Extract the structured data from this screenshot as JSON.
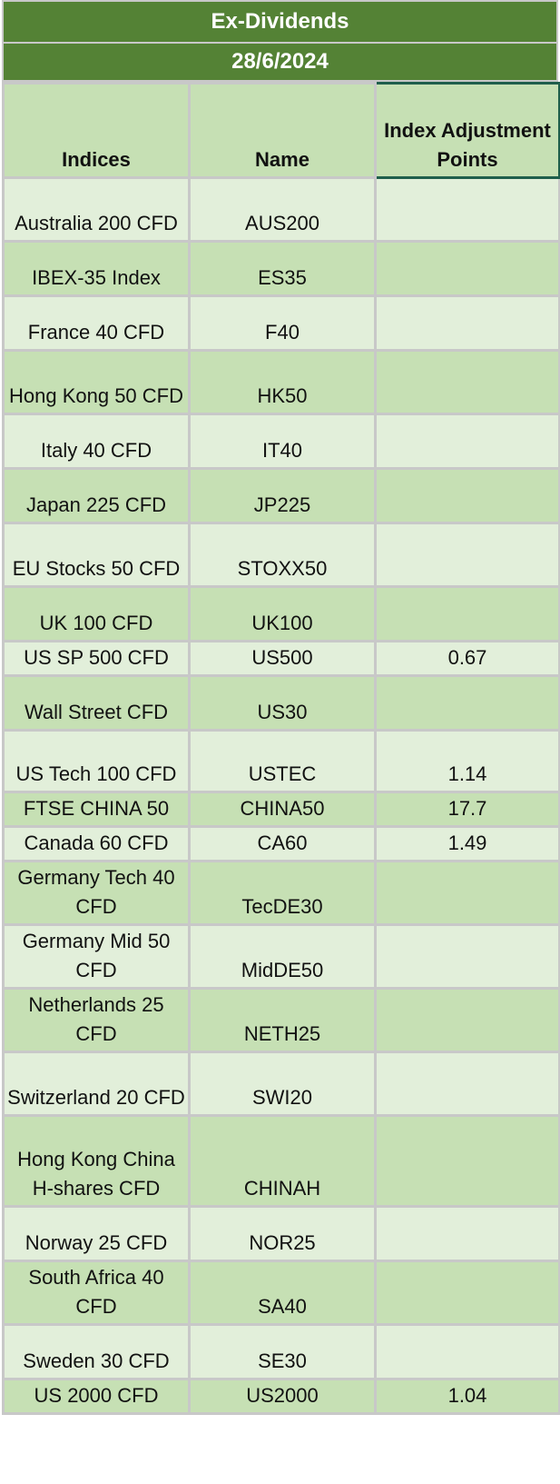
{
  "header": {
    "title": "Ex-Dividends",
    "date": "28/6/2024"
  },
  "columns": {
    "indices": "Indices",
    "name": "Name",
    "adjustment": "Index Adjustment Points"
  },
  "rows": [
    {
      "index": "Australia 200 CFD",
      "name": "AUS200",
      "points": ""
    },
    {
      "index": "IBEX-35 Index",
      "name": "ES35",
      "points": ""
    },
    {
      "index": "France 40 CFD",
      "name": "F40",
      "points": ""
    },
    {
      "index": "Hong Kong 50 CFD",
      "name": "HK50",
      "points": ""
    },
    {
      "index": "Italy 40 CFD",
      "name": "IT40",
      "points": ""
    },
    {
      "index": "Japan 225 CFD",
      "name": "JP225",
      "points": ""
    },
    {
      "index": "EU Stocks 50 CFD",
      "name": "STOXX50",
      "points": ""
    },
    {
      "index": "UK 100 CFD",
      "name": "UK100",
      "points": ""
    },
    {
      "index": "US SP 500 CFD",
      "name": "US500",
      "points": "0.67"
    },
    {
      "index": "Wall Street CFD",
      "name": "US30",
      "points": ""
    },
    {
      "index": "US Tech 100 CFD",
      "name": "USTEC",
      "points": "1.14"
    },
    {
      "index": "FTSE CHINA 50",
      "name": "CHINA50",
      "points": "17.7"
    },
    {
      "index": "Canada 60 CFD",
      "name": "CA60",
      "points": "1.49"
    },
    {
      "index": "Germany Tech 40 CFD",
      "name": "TecDE30",
      "points": ""
    },
    {
      "index": "Germany Mid 50 CFD",
      "name": "MidDE50",
      "points": ""
    },
    {
      "index": "Netherlands 25 CFD",
      "name": "NETH25",
      "points": ""
    },
    {
      "index": "Switzerland 20 CFD",
      "name": "SWI20",
      "points": ""
    },
    {
      "index": "Hong Kong China H-shares CFD",
      "name": "CHINAH",
      "points": ""
    },
    {
      "index": "Norway 25 CFD",
      "name": "NOR25",
      "points": ""
    },
    {
      "index": "South Africa 40 CFD",
      "name": "SA40",
      "points": ""
    },
    {
      "index": "Sweden 30 CFD",
      "name": "SE30",
      "points": ""
    },
    {
      "index": "US 2000 CFD",
      "name": "US2000",
      "points": "1.04"
    }
  ]
}
